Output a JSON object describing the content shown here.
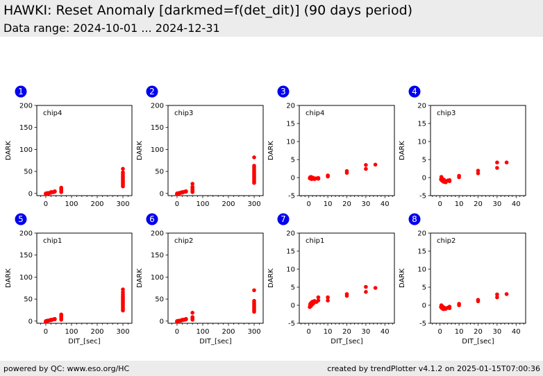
{
  "header": {
    "title": "HAWKI: Reset Anomaly [darkmed=f(det_dit)] (90 days period)",
    "subtitle": "Data range: 2024-10-01 ... 2024-12-31"
  },
  "footer": {
    "left": "powered by QC: www.eso.org/HC",
    "right": "created by trendPlotter v4.1.2 on 2025-01-15T07:00:36"
  },
  "colors": {
    "points": "#ff0000",
    "badge": "#0000ee",
    "header_bg": "#ececec"
  },
  "chart_data": [
    {
      "type": "scatter",
      "badge": "1",
      "chip": "chip4",
      "ylabel": "DARK",
      "xlabel": "",
      "xlim": [
        -35,
        335
      ],
      "ylim": [
        -5,
        200
      ],
      "xticks": [
        0,
        100,
        200,
        300
      ],
      "yticks": [
        0,
        50,
        100,
        150,
        200
      ],
      "points": [
        [
          0,
          -2
        ],
        [
          0,
          -1
        ],
        [
          0,
          0
        ],
        [
          2,
          -1
        ],
        [
          3,
          0
        ],
        [
          5,
          -1
        ],
        [
          6,
          0
        ],
        [
          8,
          1
        ],
        [
          10,
          0
        ],
        [
          12,
          1
        ],
        [
          15,
          1
        ],
        [
          20,
          2
        ],
        [
          20,
          3
        ],
        [
          25,
          3
        ],
        [
          30,
          3
        ],
        [
          35,
          4
        ],
        [
          35,
          5
        ],
        [
          60,
          3
        ],
        [
          60,
          5
        ],
        [
          60,
          7
        ],
        [
          60,
          9
        ],
        [
          60,
          11
        ],
        [
          60,
          13
        ],
        [
          60,
          4
        ],
        [
          60,
          6
        ],
        [
          300,
          16
        ],
        [
          300,
          19
        ],
        [
          300,
          22
        ],
        [
          300,
          25
        ],
        [
          300,
          28
        ],
        [
          300,
          31
        ],
        [
          300,
          34
        ],
        [
          300,
          37
        ],
        [
          300,
          40
        ],
        [
          300,
          44
        ],
        [
          300,
          48
        ],
        [
          300,
          56
        ]
      ]
    },
    {
      "type": "scatter",
      "badge": "2",
      "chip": "chip3",
      "ylabel": "DARK",
      "xlabel": "",
      "xlim": [
        -35,
        335
      ],
      "ylim": [
        -5,
        200
      ],
      "xticks": [
        0,
        100,
        200,
        300
      ],
      "yticks": [
        0,
        50,
        100,
        150,
        200
      ],
      "points": [
        [
          0,
          -2
        ],
        [
          0,
          -1
        ],
        [
          0,
          0
        ],
        [
          2,
          -1
        ],
        [
          3,
          0
        ],
        [
          5,
          0
        ],
        [
          6,
          0
        ],
        [
          8,
          1
        ],
        [
          10,
          1
        ],
        [
          12,
          1
        ],
        [
          15,
          2
        ],
        [
          20,
          2
        ],
        [
          20,
          3
        ],
        [
          25,
          3
        ],
        [
          30,
          4
        ],
        [
          35,
          4
        ],
        [
          35,
          5
        ],
        [
          60,
          3
        ],
        [
          60,
          5
        ],
        [
          60,
          7
        ],
        [
          60,
          10
        ],
        [
          60,
          13
        ],
        [
          60,
          15
        ],
        [
          60,
          22
        ],
        [
          300,
          24
        ],
        [
          300,
          27
        ],
        [
          300,
          30
        ],
        [
          300,
          33
        ],
        [
          300,
          36
        ],
        [
          300,
          39
        ],
        [
          300,
          42
        ],
        [
          300,
          45
        ],
        [
          300,
          48
        ],
        [
          300,
          51
        ],
        [
          300,
          55
        ],
        [
          300,
          59
        ],
        [
          300,
          63
        ],
        [
          300,
          82
        ]
      ]
    },
    {
      "type": "scatter",
      "badge": "3",
      "chip": "chip4",
      "ylabel": "DARK",
      "xlabel": "",
      "xlim": [
        -5,
        45
      ],
      "ylim": [
        -5,
        20
      ],
      "xticks": [
        0,
        10,
        20,
        30,
        40
      ],
      "yticks": [
        -5,
        0,
        5,
        10,
        15,
        20
      ],
      "points": [
        [
          0.5,
          -0.2
        ],
        [
          0.7,
          0.1
        ],
        [
          1,
          -0.3
        ],
        [
          1.2,
          0.2
        ],
        [
          1.5,
          -0.4
        ],
        [
          2,
          0
        ],
        [
          2,
          -0.3
        ],
        [
          2.5,
          -0.1
        ],
        [
          3,
          -0.4
        ],
        [
          4,
          -0.2
        ],
        [
          5,
          -0.3
        ],
        [
          5,
          -0.1
        ],
        [
          10,
          0.3
        ],
        [
          10,
          0.6
        ],
        [
          20,
          1.3
        ],
        [
          20,
          1.8
        ],
        [
          30,
          2.4
        ],
        [
          30,
          3.5
        ],
        [
          35,
          3.6
        ]
      ]
    },
    {
      "type": "scatter",
      "badge": "4",
      "chip": "chip3",
      "ylabel": "DARK",
      "xlabel": "",
      "xlim": [
        -5,
        45
      ],
      "ylim": [
        -5,
        20
      ],
      "xticks": [
        0,
        10,
        20,
        30,
        40
      ],
      "yticks": [
        -5,
        0,
        5,
        10,
        15,
        20
      ],
      "points": [
        [
          0.5,
          -0.5
        ],
        [
          0.7,
          0.2
        ],
        [
          1,
          -0.8
        ],
        [
          1.2,
          -0.3
        ],
        [
          1.5,
          -1
        ],
        [
          2,
          -0.6
        ],
        [
          2,
          -1.2
        ],
        [
          2.5,
          -0.9
        ],
        [
          3,
          -1.3
        ],
        [
          4,
          -0.8
        ],
        [
          5,
          -1
        ],
        [
          5,
          -0.7
        ],
        [
          10,
          0.1
        ],
        [
          10,
          0.5
        ],
        [
          20,
          1.2
        ],
        [
          20,
          1.9
        ],
        [
          30,
          2.7
        ],
        [
          30,
          4.2
        ],
        [
          35,
          4.2
        ]
      ]
    },
    {
      "type": "scatter",
      "badge": "5",
      "chip": "chip1",
      "ylabel": "DARK",
      "xlabel": "DIT_[sec]",
      "xlim": [
        -35,
        335
      ],
      "ylim": [
        -5,
        200
      ],
      "xticks": [
        0,
        100,
        200,
        300
      ],
      "yticks": [
        0,
        50,
        100,
        150,
        200
      ],
      "points": [
        [
          0,
          -2
        ],
        [
          0,
          -1
        ],
        [
          0,
          0
        ],
        [
          2,
          -1
        ],
        [
          3,
          0
        ],
        [
          5,
          0
        ],
        [
          6,
          1
        ],
        [
          8,
          1
        ],
        [
          10,
          1
        ],
        [
          12,
          1
        ],
        [
          15,
          2
        ],
        [
          20,
          2
        ],
        [
          20,
          3
        ],
        [
          25,
          3
        ],
        [
          30,
          4
        ],
        [
          35,
          4
        ],
        [
          35,
          5
        ],
        [
          60,
          3
        ],
        [
          60,
          5
        ],
        [
          60,
          7
        ],
        [
          60,
          9
        ],
        [
          60,
          11
        ],
        [
          60,
          13
        ],
        [
          60,
          15
        ],
        [
          300,
          24
        ],
        [
          300,
          27
        ],
        [
          300,
          30
        ],
        [
          300,
          33
        ],
        [
          300,
          36
        ],
        [
          300,
          39
        ],
        [
          300,
          42
        ],
        [
          300,
          45
        ],
        [
          300,
          48
        ],
        [
          300,
          51
        ],
        [
          300,
          54
        ],
        [
          300,
          57
        ],
        [
          300,
          61
        ],
        [
          300,
          66
        ],
        [
          300,
          72
        ]
      ]
    },
    {
      "type": "scatter",
      "badge": "6",
      "chip": "chip2",
      "ylabel": "DARK",
      "xlabel": "DIT_[sec]",
      "xlim": [
        -35,
        335
      ],
      "ylim": [
        -5,
        200
      ],
      "xticks": [
        0,
        100,
        200,
        300
      ],
      "yticks": [
        0,
        50,
        100,
        150,
        200
      ],
      "points": [
        [
          0,
          -2
        ],
        [
          0,
          -1
        ],
        [
          0,
          0
        ],
        [
          2,
          -1
        ],
        [
          3,
          0
        ],
        [
          5,
          0
        ],
        [
          6,
          0
        ],
        [
          8,
          1
        ],
        [
          10,
          1
        ],
        [
          12,
          1
        ],
        [
          15,
          1
        ],
        [
          20,
          2
        ],
        [
          20,
          3
        ],
        [
          25,
          3
        ],
        [
          30,
          3
        ],
        [
          35,
          4
        ],
        [
          35,
          5
        ],
        [
          60,
          3
        ],
        [
          60,
          5
        ],
        [
          60,
          7
        ],
        [
          60,
          9
        ],
        [
          60,
          19
        ],
        [
          300,
          21
        ],
        [
          300,
          24
        ],
        [
          300,
          27
        ],
        [
          300,
          30
        ],
        [
          300,
          33
        ],
        [
          300,
          36
        ],
        [
          300,
          39
        ],
        [
          300,
          42
        ],
        [
          300,
          46
        ],
        [
          300,
          70
        ]
      ]
    },
    {
      "type": "scatter",
      "badge": "7",
      "chip": "chip1",
      "ylabel": "DARK",
      "xlabel": "DIT_[sec]",
      "xlim": [
        -5,
        45
      ],
      "ylim": [
        -5,
        20
      ],
      "xticks": [
        0,
        10,
        20,
        30,
        40
      ],
      "yticks": [
        -5,
        0,
        5,
        10,
        15,
        20
      ],
      "points": [
        [
          0.5,
          -0.5
        ],
        [
          0.7,
          0.2
        ],
        [
          1,
          0.5
        ],
        [
          1.2,
          -0.2
        ],
        [
          1.5,
          0.8
        ],
        [
          2,
          0.3
        ],
        [
          2,
          1
        ],
        [
          2.5,
          0.6
        ],
        [
          3,
          1.2
        ],
        [
          4,
          0.9
        ],
        [
          5,
          1.3
        ],
        [
          5,
          2.2
        ],
        [
          10,
          1.3
        ],
        [
          10,
          2.2
        ],
        [
          20,
          2.6
        ],
        [
          20,
          3.1
        ],
        [
          30,
          3.7
        ],
        [
          30,
          5.1
        ],
        [
          35,
          4.8
        ]
      ]
    },
    {
      "type": "scatter",
      "badge": "8",
      "chip": "chip2",
      "ylabel": "DARK",
      "xlabel": "DIT_[sec]",
      "xlim": [
        -5,
        45
      ],
      "ylim": [
        -5,
        20
      ],
      "xticks": [
        0,
        10,
        20,
        30,
        40
      ],
      "yticks": [
        -5,
        0,
        5,
        10,
        15,
        20
      ],
      "points": [
        [
          0.5,
          -0.5
        ],
        [
          0.7,
          0
        ],
        [
          1,
          -0.8
        ],
        [
          1.2,
          -0.3
        ],
        [
          1.5,
          -1
        ],
        [
          2,
          -0.6
        ],
        [
          2,
          -1.1
        ],
        [
          2.5,
          -0.8
        ],
        [
          3,
          -1
        ],
        [
          4,
          -0.7
        ],
        [
          5,
          -0.8
        ],
        [
          5,
          -0.4
        ],
        [
          10,
          0
        ],
        [
          10,
          0.4
        ],
        [
          20,
          1.1
        ],
        [
          20,
          1.5
        ],
        [
          30,
          2.2
        ],
        [
          30,
          3
        ],
        [
          35,
          3.1
        ]
      ]
    }
  ]
}
